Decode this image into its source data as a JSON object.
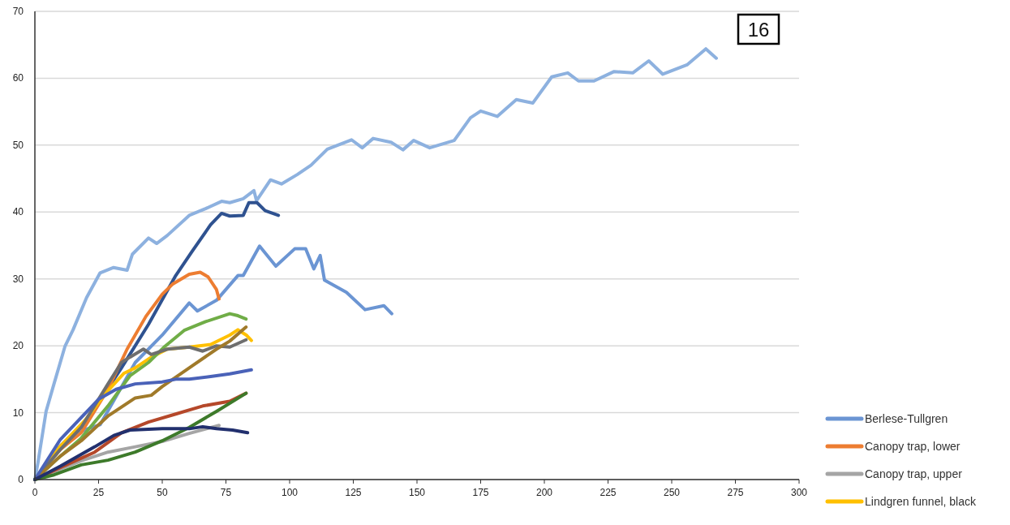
{
  "chart_data": {
    "type": "line",
    "annotations": [
      "16"
    ],
    "xlim": [
      0,
      300
    ],
    "xticks": [
      0,
      25,
      50,
      75,
      100,
      125,
      150,
      175,
      200,
      225,
      250,
      275,
      300
    ],
    "ylim": [
      0,
      70
    ],
    "yticks": [
      0,
      10,
      20,
      30,
      40,
      50,
      60,
      70
    ],
    "grid": "y",
    "legend": "bottom right",
    "line_style": "solid",
    "marker": "none",
    "series": [
      {
        "color": "#8db1df",
        "x": [
          0,
          1.2,
          4.4,
          7.5,
          11.8,
          15,
          20.3,
          25.6,
          30.9,
          36.2,
          38.3,
          44.6,
          47.8,
          52,
          60.6,
          67,
          73.3,
          76.5,
          81.8,
          86,
          87,
          92.5,
          96.8,
          103,
          108.4,
          114.8,
          124.3,
          128.5,
          132.8,
          140,
          144.5,
          148.7,
          155,
          164.6,
          171,
          175,
          181.5,
          189,
          195.5,
          202.9,
          209.2,
          213.4,
          219.5,
          227.4,
          234.7,
          241,
          246.5,
          256,
          263.4,
          267.5
        ],
        "values": [
          0,
          2.5,
          10.2,
          14.3,
          19.9,
          22.4,
          27.2,
          30.9,
          31.7,
          31.3,
          33.7,
          36.1,
          35.3,
          36.5,
          39.5,
          40.5,
          41.6,
          41.4,
          42,
          43.2,
          41.7,
          44.8,
          44.2,
          45.6,
          47,
          49.4,
          50.8,
          49.6,
          51,
          50.4,
          49.3,
          50.7,
          49.6,
          50.7,
          54.1,
          55.1,
          54.3,
          56.8,
          56.3,
          60.2,
          60.8,
          59.6,
          59.6,
          61,
          60.8,
          62.6,
          60.6,
          62,
          64.4,
          63
        ]
      },
      {
        "name": "Berlese-Tullgren",
        "color": "#6b95d3",
        "x": [
          0,
          5,
          10,
          15,
          20,
          25.6,
          32,
          39.4,
          50,
          60.6,
          63.8,
          71.3,
          79.7,
          81.8,
          88.2,
          94.6,
          102,
          106.3,
          109.5,
          112,
          113.7,
          122.3,
          129.6,
          137,
          140.1
        ],
        "values": [
          0,
          2.5,
          5,
          6.5,
          7.5,
          8.2,
          12.5,
          17.5,
          21.6,
          26.4,
          25.2,
          26.8,
          30.5,
          30.5,
          34.9,
          31.9,
          34.5,
          34.5,
          31.5,
          33.5,
          29.8,
          28,
          25.4,
          26,
          24.8
        ]
      },
      {
        "color": "#2f5290",
        "x": [
          0,
          10,
          18.2,
          25,
          34,
          44.6,
          55.3,
          61.7,
          69,
          73.3,
          76.5,
          81.8,
          84,
          87.2,
          90.4,
          95.6
        ],
        "values": [
          0,
          5,
          8,
          11.5,
          16.7,
          23.2,
          30.5,
          34.1,
          38.1,
          39.8,
          39.4,
          39.5,
          41.4,
          41.4,
          40.2,
          39.5
        ]
      },
      {
        "name": "Canopy trap, lower",
        "color": "#ed7d31",
        "x": [
          0,
          10,
          18.2,
          28.7,
          36.2,
          43.6,
          50,
          54,
          60.6,
          64.9,
          68,
          71.3,
          72.3
        ],
        "values": [
          0,
          4.5,
          7,
          13.5,
          19.5,
          24.4,
          27.7,
          29.2,
          30.7,
          31,
          30.3,
          28.4,
          27
        ]
      },
      {
        "name": "Canopy trap, upper",
        "color": "#a5a5a5",
        "x": [
          0,
          7.5,
          18.2,
          28.7,
          39.4,
          50,
          60.6,
          72.3
        ],
        "values": [
          0,
          1.2,
          2.8,
          4.1,
          4.9,
          5.7,
          6.9,
          8.1
        ]
      },
      {
        "name": "Lindgren funnel, black",
        "color": "#ffc000",
        "x": [
          0,
          10,
          20,
          28,
          35,
          39.4,
          45.7,
          52,
          60.6,
          69,
          76.5,
          79.7,
          83,
          85
        ],
        "values": [
          0,
          5,
          9,
          13,
          15.9,
          16.7,
          18.3,
          19.5,
          19.8,
          20.2,
          21.6,
          22.4,
          21.6,
          20.8
        ]
      },
      {
        "color": "#70ad47",
        "x": [
          0,
          10,
          18.2,
          28.7,
          37.3,
          44.6,
          51,
          58.6,
          67,
          76.5,
          79.7,
          82.9
        ],
        "values": [
          0,
          3.5,
          6.2,
          11,
          15.5,
          17.5,
          19.9,
          22.3,
          23.6,
          24.8,
          24.5,
          24
        ]
      },
      {
        "color": "#6e6e6e",
        "x": [
          0,
          10,
          18.2,
          28.7,
          34,
          37.3,
          42.6,
          45.7,
          52,
          60.6,
          65.9,
          71.3,
          76.5,
          82.9
        ],
        "values": [
          0,
          4.5,
          7.8,
          14.3,
          17.5,
          18.3,
          19.5,
          18.7,
          19.5,
          19.8,
          19.2,
          20,
          19.8,
          20.9
        ]
      },
      {
        "color": "#a07a2a",
        "x": [
          0,
          10,
          18.2,
          28.7,
          39.4,
          45.7,
          50,
          60.6,
          71.3,
          76.5,
          82.9
        ],
        "values": [
          0,
          3.5,
          5.8,
          9.5,
          12.2,
          12.6,
          13.9,
          16.7,
          19.5,
          20.7,
          22.8
        ]
      },
      {
        "color": "#4a62b8",
        "x": [
          0,
          10,
          20,
          25,
          31.9,
          39.4,
          50,
          55.3,
          60.6,
          69,
          76.5,
          85
        ],
        "values": [
          0,
          6,
          10,
          12,
          13.5,
          14.3,
          14.6,
          15,
          15,
          15.4,
          15.8,
          16.4
        ]
      },
      {
        "color": "#b5482a",
        "x": [
          0,
          10,
          18.2,
          23.5,
          34,
          44.6,
          55.3,
          65.9,
          76.5,
          82.9
        ],
        "values": [
          0,
          1.8,
          3.2,
          4.1,
          7,
          8.6,
          9.8,
          11,
          11.7,
          12.9
        ]
      },
      {
        "color": "#3d7a2a",
        "x": [
          0,
          7.5,
          18.2,
          28.7,
          39.4,
          50,
          60.6,
          71.3,
          82.9
        ],
        "values": [
          0,
          0.7,
          2.2,
          2.9,
          4.1,
          5.8,
          7.8,
          10.2,
          12.9
        ]
      },
      {
        "color": "#22306e",
        "x": [
          0,
          10,
          23.5,
          31,
          37.3,
          50,
          60.6,
          65.9,
          71.3,
          77.6,
          83.5
        ],
        "values": [
          0,
          2,
          4.9,
          6.6,
          7.4,
          7.6,
          7.6,
          7.9,
          7.6,
          7.4,
          7
        ]
      }
    ]
  }
}
